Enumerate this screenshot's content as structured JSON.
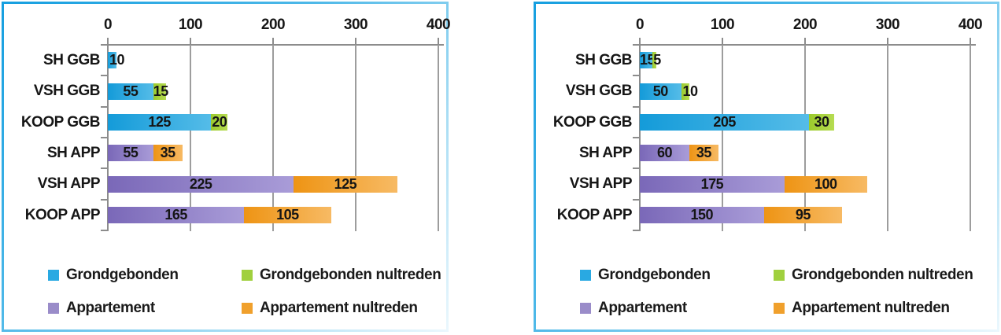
{
  "chart_data": [
    {
      "type": "bar",
      "orientation": "horizontal",
      "stacked": true,
      "title": "",
      "xlabel": "",
      "ylabel": "",
      "xlim": [
        0,
        400
      ],
      "axis_ticks": [
        "0",
        "100",
        "200",
        "300",
        "400"
      ],
      "grid": true,
      "legend_position": "bottom",
      "categories": [
        "SH GGB",
        "VSH GGB",
        "KOOP GGB",
        "SH APP",
        "VSH APP",
        "KOOP APP"
      ],
      "series": [
        {
          "name": "Grondgebonden",
          "values": [
            10,
            55,
            125,
            0,
            0,
            0
          ]
        },
        {
          "name": "Grondgebonden nultreden",
          "values": [
            0,
            15,
            20,
            0,
            0,
            0
          ]
        },
        {
          "name": "Appartement",
          "values": [
            0,
            0,
            0,
            55,
            225,
            165
          ]
        },
        {
          "name": "Appartement nultreden",
          "values": [
            0,
            0,
            0,
            35,
            125,
            105
          ]
        }
      ]
    },
    {
      "type": "bar",
      "orientation": "horizontal",
      "stacked": true,
      "title": "",
      "xlabel": "",
      "ylabel": "",
      "xlim": [
        0,
        400
      ],
      "axis_ticks": [
        "0",
        "100",
        "200",
        "300",
        "400"
      ],
      "grid": true,
      "legend_position": "bottom",
      "categories": [
        "SH GGB",
        "VSH GGB",
        "KOOP GGB",
        "SH APP",
        "VSH APP",
        "KOOP APP"
      ],
      "series": [
        {
          "name": "Grondgebonden",
          "values": [
            15,
            50,
            205,
            0,
            0,
            0
          ]
        },
        {
          "name": "Grondgebonden nultreden",
          "values": [
            5,
            10,
            30,
            0,
            0,
            0
          ]
        },
        {
          "name": "Appartement",
          "values": [
            0,
            0,
            0,
            60,
            175,
            150
          ]
        },
        {
          "name": "Appartement nultreden",
          "values": [
            0,
            0,
            0,
            35,
            100,
            95
          ]
        }
      ]
    }
  ],
  "legend": {
    "items": [
      {
        "label": "Grondgebonden",
        "swatch": "#29a9e2",
        "gradient_from": "#149bd9",
        "gradient_to": "#55bce8"
      },
      {
        "label": "Grondgebonden nultreden",
        "swatch": "#a0d03e",
        "gradient_from": "#9bca2c",
        "gradient_to": "#b6dc52"
      },
      {
        "label": "Appartement",
        "swatch": "#9a8cc9",
        "gradient_from": "#7a68b8",
        "gradient_to": "#a99cd8"
      },
      {
        "label": "Appartement nultreden",
        "swatch": "#f0a02c",
        "gradient_from": "#ee9414",
        "gradient_to": "#f7ba64"
      }
    ]
  },
  "colors": {
    "panel_border_start": "#169fe0",
    "panel_border_end": "#eaf7fd",
    "axis_line": "#8c8c8c",
    "gridline": "#9d9d9d",
    "label_text": "#161616"
  }
}
